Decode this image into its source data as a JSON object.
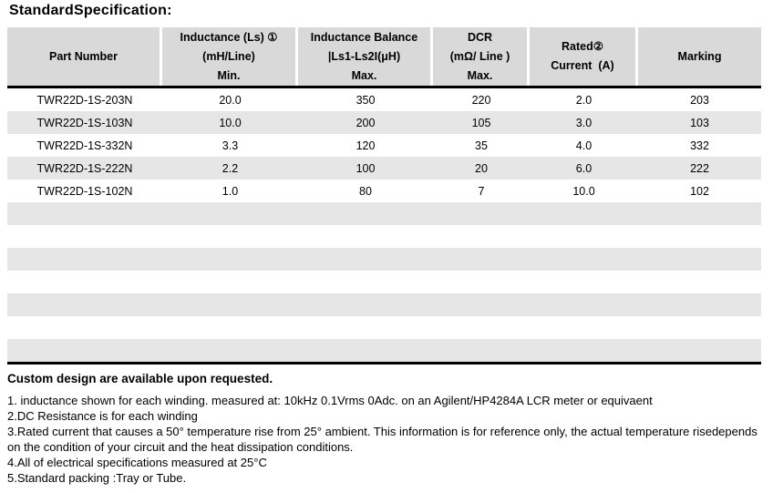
{
  "title": "StandardSpecification:",
  "colors": {
    "header_bg": "#d9d9d9",
    "stripe_bg": "#e7e6e6",
    "rule": "#000000"
  },
  "table": {
    "columns": [
      {
        "lines": [
          "Part Number"
        ]
      },
      {
        "lines": [
          "Inductance (Ls) ①",
          "(mH/Line)",
          "Min."
        ]
      },
      {
        "lines": [
          "Inductance Balance",
          "|Ls1-Ls2I(μH)",
          "Max."
        ]
      },
      {
        "lines": [
          "DCR",
          "(mΩ/ Line )",
          "Max."
        ]
      },
      {
        "lines": [
          "Rated②",
          "Current  (A)"
        ]
      },
      {
        "lines": [
          "Marking"
        ]
      }
    ],
    "rows": [
      [
        "TWR22D-1S-203N",
        "20.0",
        "350",
        "220",
        "2.0",
        "203"
      ],
      [
        "TWR22D-1S-103N",
        "10.0",
        "200",
        "105",
        "3.0",
        "103"
      ],
      [
        "TWR22D-1S-332N",
        "3.3",
        "120",
        "35",
        "4.0",
        "332"
      ],
      [
        "TWR22D-1S-222N",
        "2.2",
        "100",
        "20",
        "6.0",
        "222"
      ],
      [
        "TWR22D-1S-102N",
        "1.0",
        "80",
        "7",
        "10.0",
        "102"
      ]
    ]
  },
  "notes": {
    "heading": "Custom design are available upon requested.",
    "items": [
      "1. inductance shown for each winding. measured at: 10kHz 0.1Vrms 0Adc. on an Agilent/HP4284A LCR meter or equivaent",
      "2.DC Resistance is for each winding",
      "3.Rated current that causes a 50° temperature rise from 25° ambient. This information is for reference only, the actual temperature risedepends on the condition of your circuit and the heat dissipation conditions.",
      "4.All of electrical specifications measured at 25°C",
      "5.Standard packing :Tray or Tube."
    ]
  }
}
